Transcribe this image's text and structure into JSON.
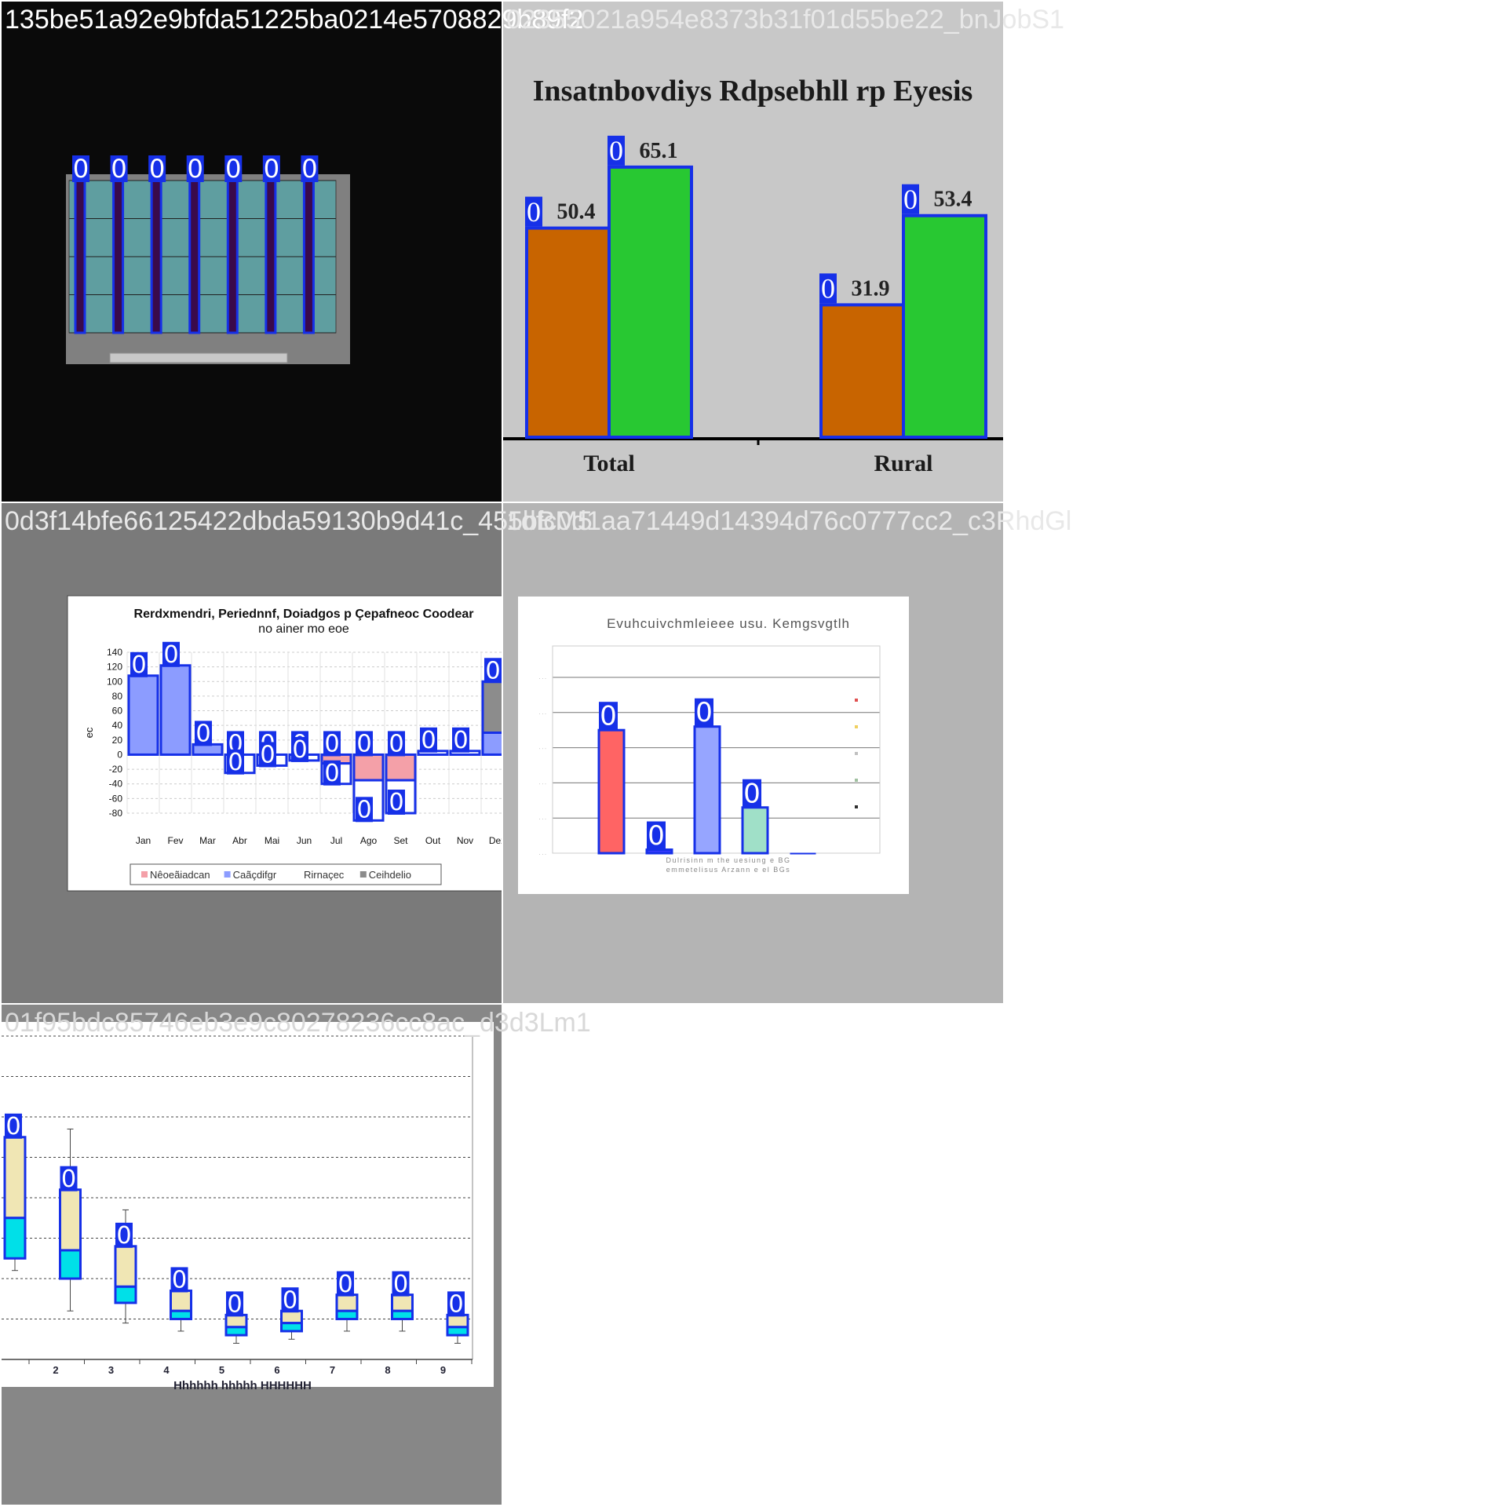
{
  "colors": {
    "annotation_blue": "#1630e8",
    "tile1_bg": "#0a0a0a",
    "tile2_bg": "#c8c8c8",
    "tile3_bg": "#7a7a7a",
    "tile4_bg": "#b4b4b4",
    "tile5_bg": "#878787"
  },
  "tiles": [
    {
      "label": "135be51a92e9bfda51225ba0214e5708829b89f2",
      "label_color": "#ffffff"
    },
    {
      "label": "02355021a954e8373b31f01d55be22_bnJobS1",
      "label_color": "#e8e8e8"
    },
    {
      "label": "0d3f14bfe66125422dbda59130b9d41c_455bBM5",
      "label_color": "#e8e8e8"
    },
    {
      "label": "1dfc0d1aa71449d14394d76c0777cc2_c3RhdGl",
      "label_color": "#e8e8e8"
    },
    {
      "label": "01f95bdc85746eb3e9c80278236cc8ac_d3d3Lm1",
      "label_color": "#d8d8d8"
    }
  ],
  "chart_data": [
    {
      "type": "bar",
      "title": "",
      "categories": [
        "",
        "",
        "",
        "",
        "",
        "",
        ""
      ],
      "values": [
        0,
        0,
        0,
        0,
        0,
        0,
        0
      ],
      "data_labels": [
        "0",
        "0",
        "0",
        "0",
        "0",
        "0",
        "0"
      ],
      "ylim": [
        0,
        1
      ],
      "grid": true,
      "colors": {
        "plot_bg": "#5f9ea0",
        "frame": "#808080",
        "bar": "#3a0a4a"
      }
    },
    {
      "type": "bar",
      "title": "Insatnbovdiys Rdpsebhll rp Eyesis",
      "categories": [
        "Total",
        "Rural"
      ],
      "series": [
        {
          "values": [
            50.4,
            31.9
          ],
          "color": "#c86400"
        },
        {
          "values": [
            65.1,
            53.4
          ],
          "color": "#28c832"
        }
      ],
      "ylim": [
        0,
        70
      ],
      "data_labels": [
        "50.4",
        "65.1",
        "31.9",
        "53.4"
      ],
      "badges": [
        "0",
        "0",
        "0",
        "0"
      ]
    },
    {
      "type": "bar",
      "title": "Rerdxmendri, Periednnf, Doiadgos p Çepafneoc Coodear",
      "subtitle": "no ainer mo eoe",
      "ylabel": "ec",
      "categories": [
        "Jan",
        "Fev",
        "Mar",
        "Abr",
        "Mai",
        "Jun",
        "Jul",
        "Ago",
        "Set",
        "Out",
        "Nov",
        "Dez"
      ],
      "yticks": [
        140,
        120,
        100,
        80,
        60,
        40,
        20,
        0,
        -20,
        -40,
        -60,
        -80
      ],
      "ylim": [
        -80,
        140
      ],
      "series": [
        {
          "name": "Nêoeãiadcan",
          "values": [
            0,
            0,
            0,
            0,
            0,
            0,
            -12,
            -35,
            -35,
            0,
            0,
            0
          ],
          "color": "#f4a0a8"
        },
        {
          "name": "Caãçdifgr",
          "values": [
            108,
            122,
            14,
            0,
            0,
            0,
            0,
            0,
            0,
            0,
            0,
            30
          ],
          "color": "#8c9cff"
        },
        {
          "name": "Rirnaçec",
          "values": [
            0,
            0,
            0,
            -25,
            -15,
            -8,
            -28,
            -55,
            -45,
            5,
            5,
            0
          ],
          "color": "#ffffff"
        },
        {
          "name": "Ceihdelio",
          "values": [
            0,
            0,
            0,
            0,
            0,
            0,
            0,
            0,
            0,
            0,
            0,
            70
          ],
          "color": "#8c8c8c"
        }
      ],
      "legend_position": "bottom",
      "grid": true,
      "badges": [
        "0",
        "0",
        "0",
        "0",
        "0",
        "0",
        "0",
        "0",
        "0",
        "0",
        "0",
        "0",
        "0",
        "0",
        "0",
        "0",
        "0"
      ]
    },
    {
      "type": "bar",
      "title": "Evuhcuivchmleieee usu. Kemgsvgtlh",
      "xlabel_lines": [
        "Dulrisinn m the uesiung e BG",
        "emmetelisus Arzann e el BGs"
      ],
      "categories": [
        "",
        "",
        "",
        "",
        ""
      ],
      "values": [
        3.5,
        0.1,
        3.6,
        1.3,
        0
      ],
      "ylim": [
        0,
        5
      ],
      "colors": [
        "#ff6464",
        "#3a3aff",
        "#96a5ff",
        "#a0e0c8",
        "#404040"
      ],
      "legend_position": "right",
      "legend_colors": [
        "#e05050",
        "#f0d060",
        "#c0c0c0",
        "#a0c0a0",
        "#303030"
      ],
      "badges": [
        "0",
        "0",
        "0",
        "0"
      ]
    },
    {
      "type": "box",
      "title": "",
      "xlabel": "Hhhhhh hhhhh HHHHHH",
      "categories": [
        "",
        "2",
        "3",
        "4",
        "5",
        "6",
        "7",
        "8",
        "9"
      ],
      "boxes": [
        {
          "whisker_low": 0.42,
          "q1": 0.45,
          "median": 0.55,
          "q3": 0.75,
          "whisker_high": 0.8
        },
        {
          "whisker_low": 0.32,
          "q1": 0.4,
          "median": 0.47,
          "q3": 0.62,
          "whisker_high": 0.77
        },
        {
          "whisker_low": 0.29,
          "q1": 0.34,
          "median": 0.38,
          "q3": 0.48,
          "whisker_high": 0.57
        },
        {
          "whisker_low": 0.27,
          "q1": 0.3,
          "median": 0.32,
          "q3": 0.37,
          "whisker_high": 0.41
        },
        {
          "whisker_low": 0.24,
          "q1": 0.26,
          "median": 0.28,
          "q3": 0.31,
          "whisker_high": 0.34
        },
        {
          "whisker_low": 0.25,
          "q1": 0.27,
          "median": 0.29,
          "q3": 0.32,
          "whisker_high": 0.35
        },
        {
          "whisker_low": 0.27,
          "q1": 0.3,
          "median": 0.32,
          "q3": 0.36,
          "whisker_high": 0.4
        },
        {
          "whisker_low": 0.27,
          "q1": 0.3,
          "median": 0.32,
          "q3": 0.36,
          "whisker_high": 0.4
        },
        {
          "whisker_low": 0.24,
          "q1": 0.26,
          "median": 0.28,
          "q3": 0.31,
          "whisker_high": 0.34
        }
      ],
      "ylim": [
        0.2,
        1.0
      ],
      "grid": true,
      "colors": {
        "box_low": "#00e0e8",
        "box_high": "#f0e6b4"
      },
      "badges": [
        "0",
        "0",
        "0",
        "0",
        "0",
        "0",
        "0",
        "0",
        "0",
        "0",
        "0",
        "0"
      ]
    }
  ]
}
